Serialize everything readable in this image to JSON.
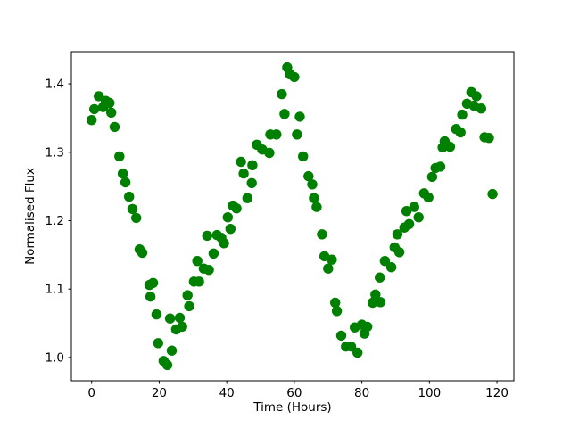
{
  "figure": {
    "background": "#ffffff",
    "spine_color": "#000000"
  },
  "chart_data": {
    "type": "scatter",
    "title": "",
    "xlabel": "Time (Hours)",
    "ylabel": "Normalised Flux",
    "xlim": [
      -6,
      125
    ],
    "ylim": [
      0.966,
      1.447
    ],
    "xticks": [
      0,
      20,
      40,
      60,
      80,
      100,
      120
    ],
    "xtick_labels": [
      "0",
      "20",
      "40",
      "60",
      "80",
      "100",
      "120"
    ],
    "yticks": [
      1.0,
      1.1,
      1.2,
      1.3,
      1.4
    ],
    "ytick_labels": [
      "1.0",
      "1.1",
      "1.2",
      "1.3",
      "1.4"
    ],
    "grid": false,
    "legend": "none",
    "marker": {
      "shape": "circle",
      "color": "#008000",
      "radius_px": 5.7
    },
    "series_name": "normalised-flux-lightcurve",
    "points": [
      [
        0.0,
        1.347
      ],
      [
        0.8,
        1.363
      ],
      [
        2.1,
        1.382
      ],
      [
        3.4,
        1.366
      ],
      [
        4.2,
        1.375
      ],
      [
        5.3,
        1.372
      ],
      [
        5.8,
        1.358
      ],
      [
        6.8,
        1.337
      ],
      [
        8.2,
        1.294
      ],
      [
        9.2,
        1.269
      ],
      [
        10.0,
        1.256
      ],
      [
        11.1,
        1.235
      ],
      [
        12.1,
        1.217
      ],
      [
        13.2,
        1.204
      ],
      [
        14.2,
        1.158
      ],
      [
        15.0,
        1.153
      ],
      [
        17.1,
        1.106
      ],
      [
        17.4,
        1.089
      ],
      [
        18.2,
        1.109
      ],
      [
        19.2,
        1.063
      ],
      [
        19.7,
        1.021
      ],
      [
        21.3,
        0.995
      ],
      [
        22.4,
        0.989
      ],
      [
        23.2,
        1.057
      ],
      [
        23.7,
        1.01
      ],
      [
        25.0,
        1.041
      ],
      [
        26.1,
        1.058
      ],
      [
        26.8,
        1.045
      ],
      [
        28.4,
        1.091
      ],
      [
        28.9,
        1.075
      ],
      [
        30.3,
        1.111
      ],
      [
        31.3,
        1.141
      ],
      [
        31.8,
        1.111
      ],
      [
        33.2,
        1.13
      ],
      [
        34.2,
        1.178
      ],
      [
        34.7,
        1.128
      ],
      [
        36.1,
        1.152
      ],
      [
        37.1,
        1.179
      ],
      [
        38.4,
        1.175
      ],
      [
        39.2,
        1.167
      ],
      [
        40.3,
        1.205
      ],
      [
        41.1,
        1.188
      ],
      [
        41.8,
        1.222
      ],
      [
        42.9,
        1.218
      ],
      [
        44.2,
        1.286
      ],
      [
        45.0,
        1.269
      ],
      [
        46.1,
        1.233
      ],
      [
        47.4,
        1.255
      ],
      [
        47.6,
        1.281
      ],
      [
        48.9,
        1.311
      ],
      [
        50.5,
        1.304
      ],
      [
        52.6,
        1.299
      ],
      [
        52.9,
        1.326
      ],
      [
        54.7,
        1.326
      ],
      [
        56.3,
        1.385
      ],
      [
        57.1,
        1.356
      ],
      [
        57.9,
        1.424
      ],
      [
        58.7,
        1.414
      ],
      [
        60.0,
        1.41
      ],
      [
        60.8,
        1.326
      ],
      [
        61.6,
        1.352
      ],
      [
        62.6,
        1.294
      ],
      [
        64.2,
        1.265
      ],
      [
        65.3,
        1.253
      ],
      [
        65.8,
        1.233
      ],
      [
        66.6,
        1.22
      ],
      [
        68.2,
        1.18
      ],
      [
        68.9,
        1.148
      ],
      [
        70.0,
        1.13
      ],
      [
        71.1,
        1.143
      ],
      [
        72.1,
        1.08
      ],
      [
        72.6,
        1.068
      ],
      [
        73.9,
        1.032
      ],
      [
        75.3,
        1.016
      ],
      [
        76.8,
        1.016
      ],
      [
        77.9,
        1.044
      ],
      [
        78.7,
        1.007
      ],
      [
        80.0,
        1.048
      ],
      [
        80.8,
        1.035
      ],
      [
        81.6,
        1.045
      ],
      [
        83.2,
        1.08
      ],
      [
        84.0,
        1.092
      ],
      [
        85.3,
        1.117
      ],
      [
        85.5,
        1.081
      ],
      [
        86.8,
        1.141
      ],
      [
        88.7,
        1.132
      ],
      [
        89.7,
        1.161
      ],
      [
        90.5,
        1.18
      ],
      [
        91.1,
        1.154
      ],
      [
        92.6,
        1.19
      ],
      [
        93.2,
        1.214
      ],
      [
        94.0,
        1.195
      ],
      [
        95.5,
        1.22
      ],
      [
        96.8,
        1.205
      ],
      [
        98.4,
        1.24
      ],
      [
        99.7,
        1.234
      ],
      [
        100.8,
        1.264
      ],
      [
        101.8,
        1.277
      ],
      [
        103.2,
        1.279
      ],
      [
        103.9,
        1.307
      ],
      [
        104.5,
        1.316
      ],
      [
        106.1,
        1.308
      ],
      [
        107.9,
        1.334
      ],
      [
        109.2,
        1.329
      ],
      [
        109.7,
        1.355
      ],
      [
        111.1,
        1.371
      ],
      [
        112.4,
        1.388
      ],
      [
        113.2,
        1.368
      ],
      [
        113.9,
        1.382
      ],
      [
        115.3,
        1.364
      ],
      [
        116.3,
        1.322
      ],
      [
        117.6,
        1.321
      ],
      [
        118.7,
        1.239
      ]
    ]
  }
}
